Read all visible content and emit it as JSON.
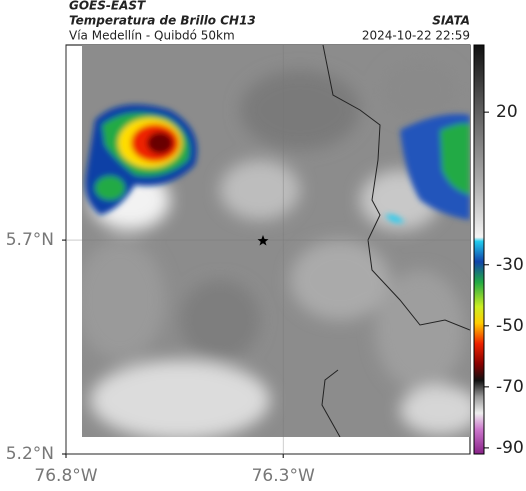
{
  "header": {
    "satellite": "GOES-EAST",
    "product": "Temperatura de Brillo CH13",
    "route": "Vía Medellín - Quibdó 50km",
    "source": "SIATA",
    "timestamp": "2024-10-22 22:59"
  },
  "map": {
    "xlim": [
      -76.8,
      -75.87
    ],
    "ylim": [
      5.2,
      6.156
    ],
    "xticks": [
      {
        "value": -76.8,
        "label": "76.8°W"
      },
      {
        "value": -76.3,
        "label": "76.3°W"
      }
    ],
    "yticks": [
      {
        "value": 5.2,
        "label": "5.2°N"
      },
      {
        "value": 5.7,
        "label": "5.7°N"
      }
    ],
    "grid": true
  },
  "colorbar": {
    "lim": [
      -92,
      42
    ],
    "ticks": [
      20,
      -30,
      -50,
      -70,
      -90
    ]
  }
}
